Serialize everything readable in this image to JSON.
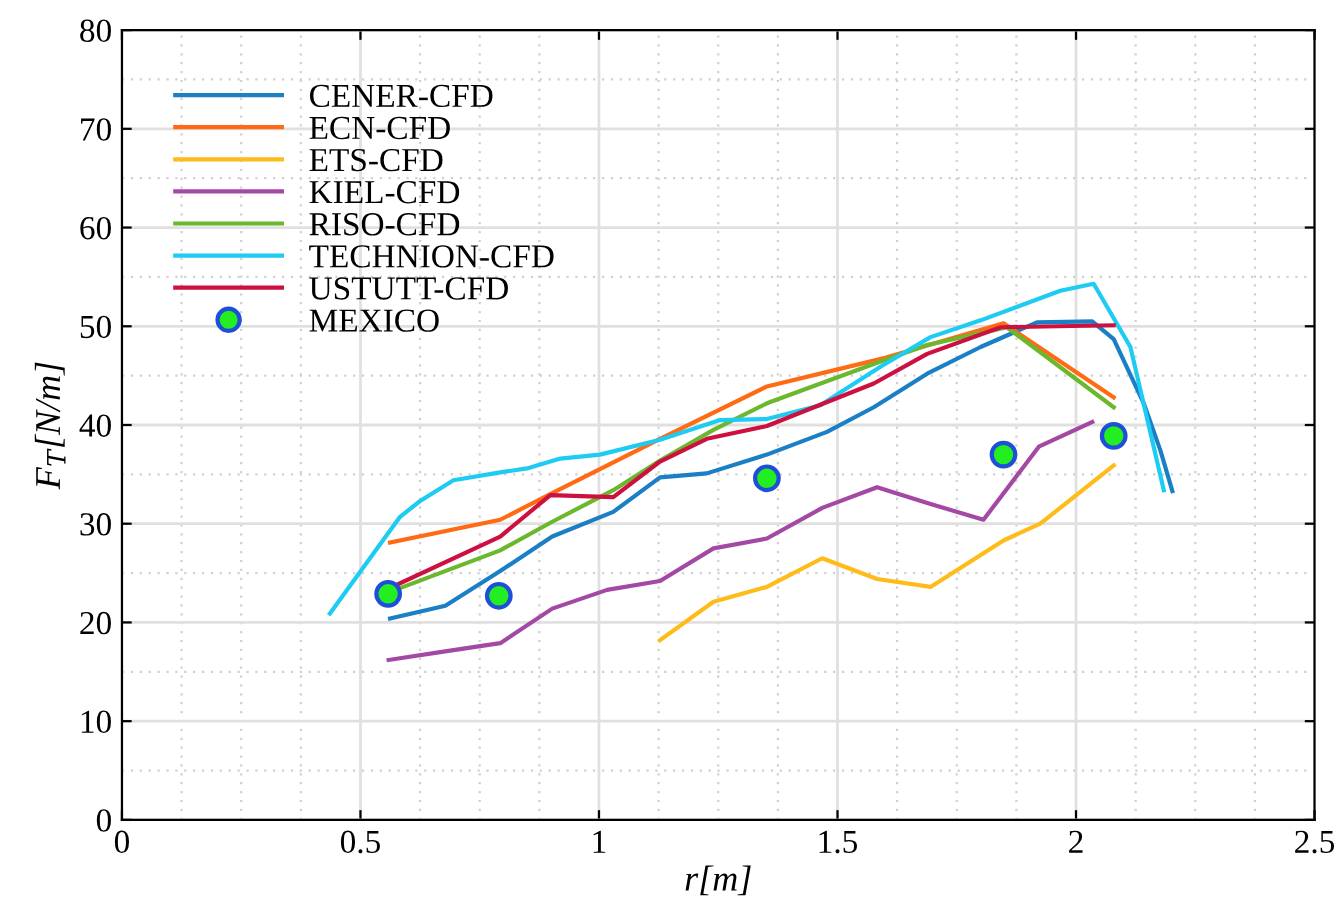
{
  "chart_data": {
    "type": "line",
    "xlabel": "r[m]",
    "ylabel": "F$_{T}$[N/m]",
    "xlim": [
      0,
      2.5
    ],
    "ylim": [
      0,
      80
    ],
    "xticks": [
      0,
      0.5,
      1,
      1.5,
      2,
      2.5
    ],
    "yticks": [
      0,
      10,
      20,
      30,
      40,
      50,
      60,
      70,
      80
    ],
    "grid": true,
    "legend": "top left",
    "marker": "none",
    "line_style": "solid",
    "series": [
      {
        "name": "CENER-CFD",
        "color": "#1a7fc4",
        "x": [
          0.562,
          0.678,
          0.793,
          0.902,
          1.03,
          1.128,
          1.226,
          1.352,
          1.478,
          1.576,
          1.688,
          1.8,
          1.918,
          2.034,
          2.079,
          2.142,
          2.177,
          2.202
        ],
        "values": [
          20.4,
          21.7,
          25.2,
          28.7,
          31.2,
          34.7,
          35.1,
          37.0,
          39.3,
          41.8,
          45.2,
          47.9,
          50.4,
          50.5,
          48.7,
          42.2,
          37.4,
          33.3
        ]
      },
      {
        "name": "ECN-CFD",
        "color": "#ff6a13",
        "x": [
          0.562,
          0.793,
          0.902,
          1.128,
          1.352,
          1.6,
          1.848,
          2.079
        ],
        "values": [
          28.1,
          30.4,
          33.1,
          38.6,
          43.9,
          46.8,
          50.3,
          42.8
        ]
      },
      {
        "name": "ETS-CFD",
        "color": "#ffbb1a",
        "x": [
          1.128,
          1.24,
          1.352,
          1.468,
          1.583,
          1.695,
          1.848,
          1.925,
          2.079
        ],
        "values": [
          18.2,
          22.1,
          23.6,
          26.5,
          24.4,
          23.6,
          28.3,
          30.0,
          35.9
        ]
      },
      {
        "name": "KIEL-CFD",
        "color": "#a349a4",
        "x": [
          0.559,
          0.681,
          0.793,
          0.902,
          1.017,
          1.128,
          1.24,
          1.352,
          1.468,
          1.583,
          1.695,
          1.806,
          1.922,
          2.034
        ],
        "values": [
          16.2,
          17.1,
          17.9,
          21.4,
          23.3,
          24.2,
          27.5,
          28.5,
          31.6,
          33.7,
          32.0,
          30.4,
          37.8,
          40.3
        ]
      },
      {
        "name": "RISO-CFD",
        "color": "#6bb82f",
        "x": [
          0.562,
          0.793,
          0.902,
          1.03,
          1.128,
          1.24,
          1.352,
          1.583,
          1.688,
          1.855,
          2.079
        ],
        "values": [
          23.1,
          27.3,
          30.2,
          33.4,
          36.4,
          39.5,
          42.2,
          46.3,
          48.1,
          49.9,
          41.8
        ]
      },
      {
        "name": "TECHNION-CFD",
        "color": "#1ecbf2",
        "x": [
          0.436,
          0.583,
          0.625,
          0.695,
          0.793,
          0.849,
          0.919,
          1.002,
          1.128,
          1.254,
          1.352,
          1.464,
          1.59,
          1.695,
          1.8,
          1.967,
          2.037,
          2.114,
          2.184
        ],
        "values": [
          20.9,
          30.7,
          32.3,
          34.4,
          35.2,
          35.6,
          36.6,
          37.0,
          38.5,
          40.5,
          40.6,
          42.0,
          45.9,
          48.9,
          50.6,
          53.6,
          54.3,
          47.9,
          33.4
        ]
      },
      {
        "name": "USTUTT-CFD",
        "color": "#cc1040",
        "x": [
          0.562,
          0.793,
          0.898,
          1.03,
          1.128,
          1.226,
          1.352,
          1.576,
          1.688,
          1.842,
          2.079
        ],
        "values": [
          23.5,
          28.7,
          32.9,
          32.7,
          36.3,
          38.6,
          39.9,
          44.2,
          47.2,
          49.9,
          50.1
        ]
      },
      {
        "name": "MEXICO",
        "type": "scatter",
        "marker": "circle",
        "color": "#22ee22",
        "x": [
          0.558,
          0.79,
          1.352,
          1.848,
          2.079
        ],
        "values": [
          22.9,
          22.7,
          34.6,
          37.0,
          38.9
        ]
      }
    ]
  }
}
